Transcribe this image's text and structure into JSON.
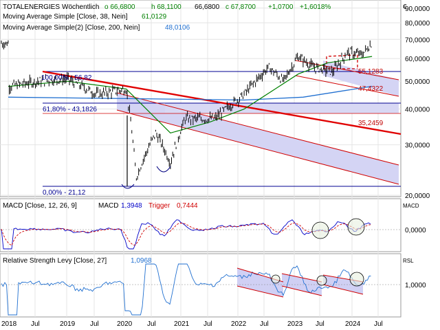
{
  "header": {
    "symbol": "TOTALENERGIES",
    "period": "Wöchentlich",
    "open": "o 66,6800",
    "high": "h 68,1100",
    "close": "66,6800",
    "last": "c 67,8700",
    "change": "+1,0700",
    "change_pct": "+1,6018%"
  },
  "legend": [
    {
      "label": "Moving Average Simple  [Close, 38, Nein]",
      "value": "61,0129",
      "color": "#008000"
    },
    {
      "label": "Moving Average Simple(2)  [Close, 200, Nein]",
      "value": "48,0106",
      "color": "#1f6fd0"
    }
  ],
  "currency": "€",
  "price_axis_labels": [
    "90,0000",
    "80,0000",
    "70,0000",
    "60,0000",
    "50,0000",
    "40,0000",
    "30,0000",
    "20,0000"
  ],
  "time_labels": [
    "2018",
    "Jul",
    "2019",
    "Jul",
    "2020",
    "Jul",
    "2021",
    "Jul",
    "2022",
    "Jul",
    "2023",
    "Jul",
    "2024",
    "Jul"
  ],
  "annotations": {
    "fib_100": "100,00% - 56,82",
    "fib_618": "61,80% - 43,1826",
    "fib_0": "0,00% - 21,12",
    "level_55": "55,1283",
    "level_47": "47,4322",
    "level_35": "35,2459"
  },
  "macd": {
    "label": "MACD  [Close, 12, 26, 9]",
    "macd_name": "MACD",
    "macd_value": "1,3948",
    "trigger_name": "Trigger",
    "trigger_value": "0,7444",
    "axis_title": "MACD",
    "axis_label": "0,0000"
  },
  "rsl": {
    "label": "Relative Strength Levy  [Close, 27]",
    "value": "1,0968",
    "axis_title": "RSL",
    "axis_label": "1,0000"
  },
  "colors": {
    "ma38": "#008000",
    "ma200": "#1f6fd0",
    "trend": "#e00000",
    "channel_fill": "#c8c8f0",
    "fib": "#000090",
    "macd": "#0000c8",
    "trigger": "#d00000",
    "rsl": "#1f6fd0"
  },
  "chart_data": {
    "type": "line",
    "title": "TOTALENERGIES",
    "y_scale": "log",
    "ylim": [
      20,
      95
    ],
    "series": [
      {
        "name": "Close",
        "x": [
          "2018-01",
          "2018-07",
          "2019-01",
          "2019-07",
          "2020-01",
          "2020-03",
          "2020-07",
          "2020-10",
          "2021-01",
          "2021-07",
          "2022-01",
          "2022-06",
          "2022-09",
          "2022-12",
          "2023-03",
          "2023-07",
          "2023-10",
          "2024-01",
          "2024-03"
        ],
        "values": [
          48,
          50,
          51,
          45,
          47,
          23,
          33,
          26,
          37,
          37,
          45,
          56,
          50,
          61,
          56,
          54,
          63,
          62,
          67.87
        ]
      },
      {
        "name": "Moving Average Simple  [Close, 38, Nein]",
        "x": [
          "2018-01",
          "2019-01",
          "2020-01",
          "2020-10",
          "2021-06",
          "2022-01",
          "2022-12",
          "2023-06",
          "2024-03"
        ],
        "values": [
          48,
          50,
          47,
          33,
          36,
          40,
          53,
          58,
          61.01
        ]
      },
      {
        "name": "Moving Average Simple(2)  [Close, 200, Nein]",
        "x": [
          "2018-01",
          "2020-01",
          "2022-01",
          "2023-01",
          "2024-03"
        ],
        "values": [
          44,
          43.5,
          43,
          44,
          48.01
        ]
      }
    ],
    "macd": {
      "macd_last": 1.3948,
      "trigger_last": 0.7444
    },
    "rsl": {
      "last": 1.0968
    }
  }
}
